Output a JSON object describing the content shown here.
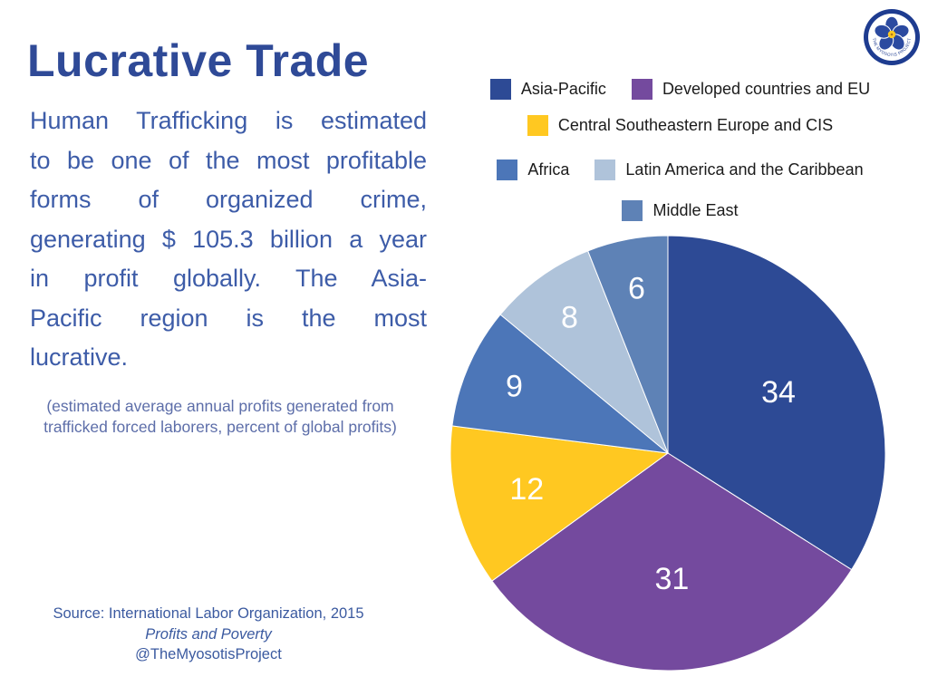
{
  "page": {
    "title": "Lucrative Trade"
  },
  "intro": {
    "lines": [
      "Human Trafficking is estimated",
      "to be one of the most profitable",
      "forms of organized crime,",
      "generating $ 105.3 billion a year",
      "in profit globally. The Asia-",
      "Pacific region is the most",
      "lucrative."
    ],
    "note_lines": [
      "(estimated average annual profits generated from",
      "trafficked forced laborers, percent of global profits)"
    ]
  },
  "footer": {
    "source": "Source: International Labor Organization, 2015",
    "publication": "Profits and Poverty",
    "handle": "@TheMyosotisProject"
  },
  "logo": {
    "organization": "The Myosotis Project",
    "ring_text": "THE MYOSOTIS PROJECT"
  },
  "chart_data": {
    "type": "pie",
    "title": "",
    "labels": [
      "Asia-Pacific",
      "Developed countries and EU",
      "Central Southeastern Europe and CIS",
      "Africa",
      "Latin America and the Caribbean",
      "Middle East"
    ],
    "values": [
      34,
      31,
      12,
      9,
      8,
      6
    ],
    "colors": [
      "#2D4A95",
      "#744A9E",
      "#FFC821",
      "#4C76B8",
      "#AFC3DA",
      "#5E82B6"
    ],
    "unit": "percent of global profits",
    "start_angle": "12 o'clock, clockwise",
    "legend_position": "top",
    "legend_rows": [
      [
        0,
        1
      ],
      [
        2
      ],
      [
        3,
        4
      ],
      [
        5
      ]
    ],
    "slice_label_color": "#FFFFFF"
  }
}
